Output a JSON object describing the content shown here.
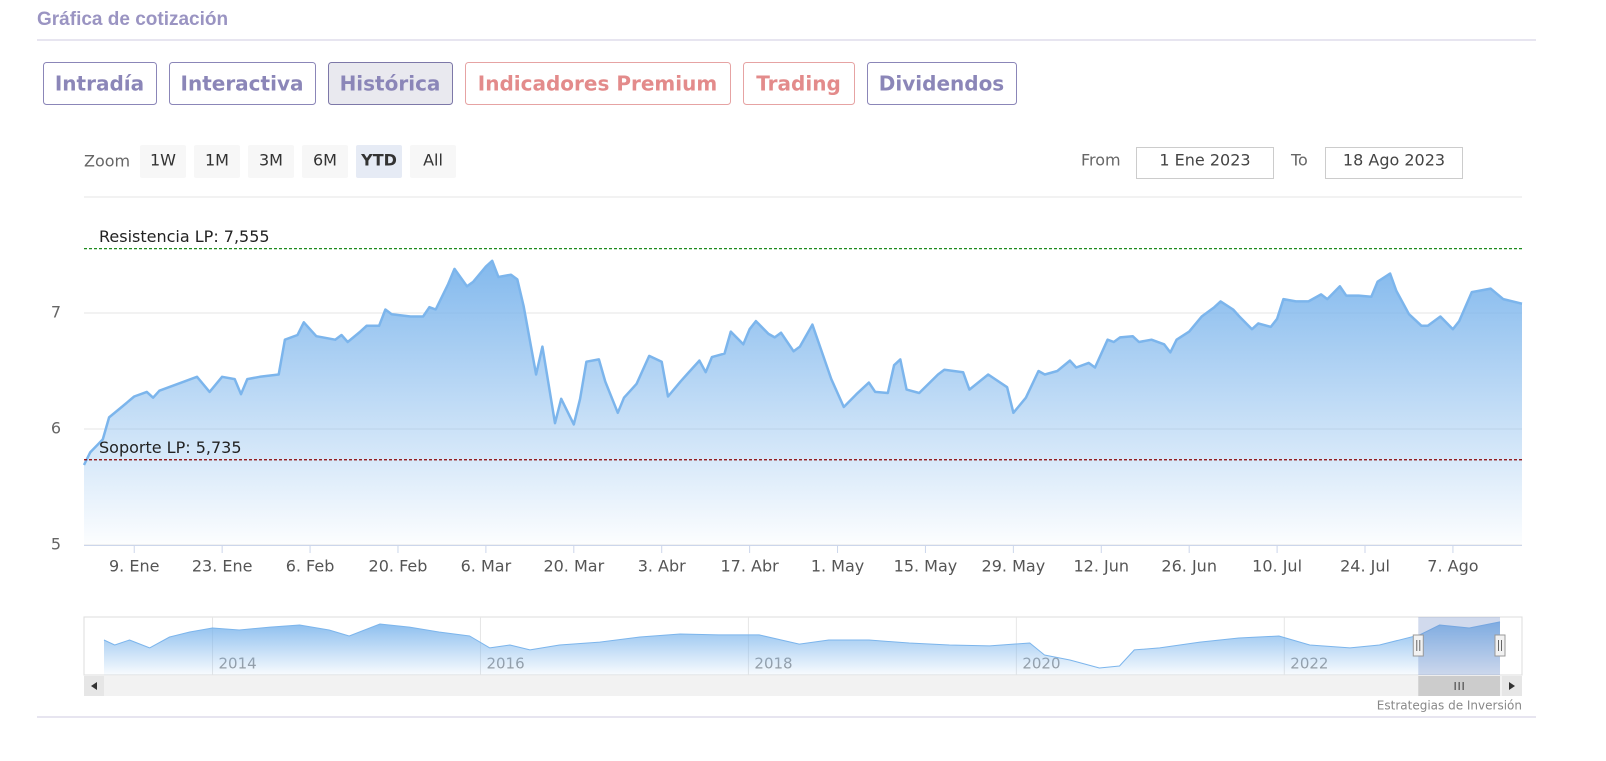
{
  "header": {
    "title": "Gráfica de cotización"
  },
  "tabs": [
    {
      "label": "Intradía",
      "style": "default"
    },
    {
      "label": "Interactiva",
      "style": "default"
    },
    {
      "label": "Histórica",
      "style": "active"
    },
    {
      "label": "Indicadores Premium",
      "style": "premium"
    },
    {
      "label": "Trading",
      "style": "premium"
    },
    {
      "label": "Dividendos",
      "style": "default"
    }
  ],
  "range_selector": {
    "zoom_label": "Zoom",
    "buttons": [
      "1W",
      "1M",
      "3M",
      "6M",
      "YTD",
      "All"
    ],
    "selected_index": 4,
    "from_label": "From",
    "from": "1 Ene 2023",
    "to_label": "To",
    "to": "18 Ago 2023"
  },
  "chart_data": [
    {
      "type": "area",
      "color": "#7cb5ec",
      "grid": true,
      "x": [
        1,
        2,
        4,
        5,
        7,
        9,
        11,
        12,
        13,
        17,
        19,
        21,
        23,
        25,
        26,
        27,
        29,
        32,
        33,
        35,
        36,
        38,
        41,
        42,
        43,
        45,
        46,
        48,
        49,
        50,
        53,
        55,
        56,
        57,
        59,
        60,
        62,
        63,
        65,
        66,
        67,
        69,
        70,
        71,
        73,
        74,
        76,
        77,
        79,
        80,
        81,
        83,
        84,
        86,
        87,
        89,
        91,
        93,
        94,
        96,
        97,
        99,
        100,
        101,
        103,
        104,
        106,
        107,
        108,
        110,
        111,
        112,
        114,
        115,
        117,
        120,
        122,
        124,
        126,
        127,
        129,
        130,
        131,
        132,
        134,
        137,
        138,
        141,
        142,
        145,
        148,
        149,
        151,
        153,
        154,
        156,
        158,
        159,
        161,
        162,
        164,
        165,
        166,
        168,
        169,
        171,
        173,
        174,
        175,
        177,
        179,
        181,
        182,
        184,
        185,
        187,
        188,
        190,
        191,
        192,
        194,
        196,
        198,
        199,
        201,
        202,
        204,
        206,
        207,
        209,
        210,
        212,
        214,
        215,
        217,
        219,
        220,
        222,
        223,
        225,
        227,
        230
      ],
      "values": [
        5.69,
        5.8,
        5.91,
        6.1,
        6.19,
        6.28,
        6.32,
        6.27,
        6.33,
        6.41,
        6.45,
        6.32,
        6.45,
        6.43,
        6.3,
        6.43,
        6.45,
        6.47,
        6.77,
        6.81,
        6.92,
        6.8,
        6.77,
        6.81,
        6.75,
        6.84,
        6.89,
        6.89,
        7.03,
        6.99,
        6.97,
        6.97,
        7.05,
        7.03,
        7.25,
        7.38,
        7.23,
        7.27,
        7.4,
        7.45,
        7.31,
        7.33,
        7.29,
        7.06,
        6.47,
        6.71,
        6.05,
        6.26,
        6.04,
        6.26,
        6.58,
        6.6,
        6.41,
        6.14,
        6.27,
        6.39,
        6.63,
        6.58,
        6.28,
        6.41,
        6.47,
        6.59,
        6.49,
        6.62,
        6.65,
        6.84,
        6.73,
        6.86,
        6.93,
        6.82,
        6.79,
        6.83,
        6.67,
        6.71,
        6.9,
        6.43,
        6.19,
        6.3,
        6.4,
        6.32,
        6.31,
        6.55,
        6.6,
        6.34,
        6.31,
        6.47,
        6.51,
        6.49,
        6.34,
        6.47,
        6.36,
        6.14,
        6.27,
        6.5,
        6.47,
        6.5,
        6.59,
        6.53,
        6.57,
        6.53,
        6.77,
        6.75,
        6.79,
        6.8,
        6.75,
        6.77,
        6.73,
        6.66,
        6.77,
        6.84,
        6.97,
        7.05,
        7.1,
        7.03,
        6.97,
        6.86,
        6.91,
        6.88,
        6.95,
        7.12,
        7.1,
        7.1,
        7.16,
        7.12,
        7.23,
        7.15,
        7.15,
        7.14,
        7.27,
        7.34,
        7.19,
        6.99,
        6.89,
        6.89,
        6.97,
        6.86,
        6.93,
        7.18,
        7.19,
        7.21,
        7.12,
        7.08
      ],
      "xlim": [
        1,
        230
      ],
      "xticks": [
        {
          "value": 9,
          "label": "9. Ene"
        },
        {
          "value": 23,
          "label": "23. Ene"
        },
        {
          "value": 37,
          "label": "6. Feb"
        },
        {
          "value": 51,
          "label": "20. Feb"
        },
        {
          "value": 65,
          "label": "6. Mar"
        },
        {
          "value": 79,
          "label": "20. Mar"
        },
        {
          "value": 93,
          "label": "3. Abr"
        },
        {
          "value": 107,
          "label": "17. Abr"
        },
        {
          "value": 121,
          "label": "1. May"
        },
        {
          "value": 135,
          "label": "15. May"
        },
        {
          "value": 149,
          "label": "29. May"
        },
        {
          "value": 163,
          "label": "12. Jun"
        },
        {
          "value": 177,
          "label": "26. Jun"
        },
        {
          "value": 191,
          "label": "10. Jul"
        },
        {
          "value": 205,
          "label": "24. Jul"
        },
        {
          "value": 219,
          "label": "7. Ago"
        }
      ],
      "ylim": [
        5,
        8
      ],
      "yticks": [
        5,
        6,
        7
      ],
      "plot_lines": [
        {
          "value": 7.555,
          "label": "Resistencia LP: 7,555",
          "color": "#1e8c1e"
        },
        {
          "value": 5.735,
          "label": "Soporte LP: 5,735",
          "color": "#8b0000"
        }
      ]
    },
    {
      "type": "area",
      "color": "#7cb5ec",
      "x": [
        2013.19,
        2013.27,
        2013.38,
        2013.53,
        2013.68,
        2013.83,
        2014.0,
        2014.2,
        2014.43,
        2014.65,
        2014.87,
        2015.02,
        2015.25,
        2015.47,
        2015.69,
        2015.92,
        2016.07,
        2016.22,
        2016.37,
        2016.59,
        2016.89,
        2017.19,
        2017.49,
        2017.78,
        2018.08,
        2018.38,
        2018.6,
        2018.9,
        2019.2,
        2019.5,
        2019.8,
        2020.1,
        2020.21,
        2020.4,
        2020.62,
        2020.77,
        2020.88,
        2021.07,
        2021.37,
        2021.66,
        2021.96,
        2022.19,
        2022.49,
        2022.71,
        2023.01,
        2023.16,
        2023.38,
        2023.61
      ],
      "values": [
        6.26,
        5.94,
        6.26,
        5.75,
        6.46,
        6.78,
        7.04,
        6.91,
        7.1,
        7.23,
        6.91,
        6.52,
        7.3,
        7.1,
        6.78,
        6.52,
        5.75,
        5.94,
        5.62,
        5.94,
        6.13,
        6.46,
        6.65,
        6.59,
        6.59,
        6.0,
        6.26,
        6.26,
        6.07,
        5.94,
        5.88,
        6.07,
        5.29,
        4.97,
        4.45,
        4.58,
        5.62,
        5.75,
        6.13,
        6.39,
        6.52,
        5.94,
        5.75,
        5.94,
        6.59,
        7.23,
        7.04,
        7.43
      ],
      "xlim": [
        2013.19,
        2023.61
      ],
      "xticks": [
        2014,
        2016,
        2018,
        2020,
        2022
      ],
      "ylim": [
        4,
        7.75
      ],
      "selection": [
        2023.0,
        2023.61
      ]
    }
  ],
  "credit": "Estrategias de Inversión"
}
